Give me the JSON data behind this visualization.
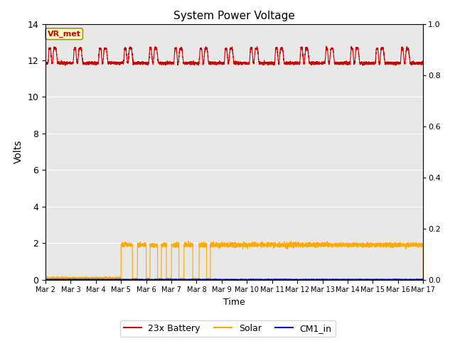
{
  "title": "System Power Voltage",
  "xlabel": "Time",
  "ylabel": "Volts",
  "xlim_days": [
    0,
    15
  ],
  "ylim_left": [
    0,
    14
  ],
  "ylim_right": [
    0.0,
    1.0
  ],
  "yticks_left": [
    0,
    2,
    4,
    6,
    8,
    10,
    12,
    14
  ],
  "yticks_right": [
    0.0,
    0.2,
    0.4,
    0.6,
    0.8,
    1.0
  ],
  "xtick_labels": [
    "Mar 2",
    "Mar 3",
    "Mar 4",
    "Mar 5",
    "Mar 6",
    "Mar 7",
    "Mar 8",
    "Mar 9",
    "Mar 10",
    "Mar 11",
    "Mar 12",
    "Mar 13",
    "Mar 14",
    "Mar 15",
    "Mar 16",
    "Mar 17"
  ],
  "background_color": "#e8e8e8",
  "grid_color": "#ffffff",
  "annotation_text": "VR_met",
  "annotation_color": "#cc0000",
  "annotation_bg": "#ffffcc",
  "annotation_border": "#999900",
  "battery_color": "#cc0000",
  "solar_color": "#ffaa00",
  "cm1_color": "#0000cc",
  "legend_labels": [
    "23x Battery",
    "Solar",
    "CM1_in"
  ],
  "figsize": [
    6.4,
    4.8
  ],
  "dpi": 100,
  "base_voltage": 11.85,
  "peak_voltage": 12.65,
  "solar_high": 1.9,
  "solar_low": 0.05
}
